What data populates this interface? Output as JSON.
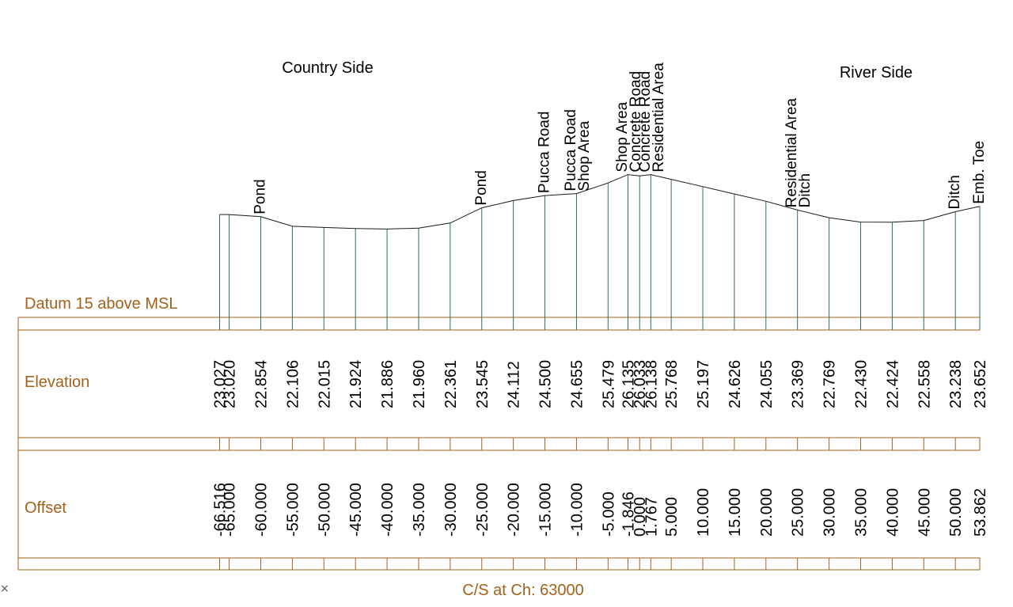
{
  "title": "C/S at Ch: 63000",
  "datum_label": "Datum 15 above MSL",
  "rows": {
    "elevation": "Elevation",
    "offset": "Offset"
  },
  "side_labels": {
    "left": "Country Side",
    "right": "River Side"
  },
  "colors": {
    "frame": "#a0621a",
    "verticals": "#2e6e5a",
    "profile": "#1a1a1a"
  },
  "chart_data": {
    "type": "line",
    "xlabel": "Offset",
    "ylabel": "Elevation",
    "datum": 15,
    "offsets": [
      "-66.516",
      "-65.000",
      "-60.000",
      "-55.000",
      "-50.000",
      "-45.000",
      "-40.000",
      "-35.000",
      "-30.000",
      "-25.000",
      "-20.000",
      "-15.000",
      "-10.000",
      "-5.000",
      "-1.846",
      "0.000",
      "1.767",
      "5.000",
      "10.000",
      "15.000",
      "20.000",
      "25.000",
      "30.000",
      "35.000",
      "40.000",
      "45.000",
      "50.000",
      "53.862"
    ],
    "elevations": [
      "23.027",
      "23.020",
      "22.854",
      "22.106",
      "22.015",
      "21.924",
      "21.886",
      "21.960",
      "22.361",
      "23.545",
      "24.112",
      "24.500",
      "24.655",
      "25.479",
      "26.135",
      "26.033",
      "26.138",
      "25.768",
      "25.197",
      "24.626",
      "24.055",
      "23.369",
      "22.769",
      "22.430",
      "22.424",
      "22.558",
      "23.238",
      "23.652"
    ],
    "features": [
      {
        "offset": -60,
        "labels": [
          "Pond"
        ]
      },
      {
        "offset": -25,
        "labels": [
          "Pond"
        ]
      },
      {
        "offset": -15,
        "labels": [
          "Pucca Road"
        ]
      },
      {
        "offset": -10,
        "labels": [
          "Pucca Road",
          "Shop Area"
        ]
      },
      {
        "offset": -1.846,
        "labels": [
          "Shop Area",
          "Concrete Road"
        ]
      },
      {
        "offset": 1.767,
        "labels": [
          "Concrete Road",
          "Residential Area"
        ]
      },
      {
        "offset": 25,
        "labels": [
          "Residential Area",
          "Ditch"
        ]
      },
      {
        "offset": 50,
        "labels": [
          "Ditch"
        ]
      },
      {
        "offset": 53.862,
        "labels": [
          "Emb. Toe"
        ]
      }
    ]
  }
}
